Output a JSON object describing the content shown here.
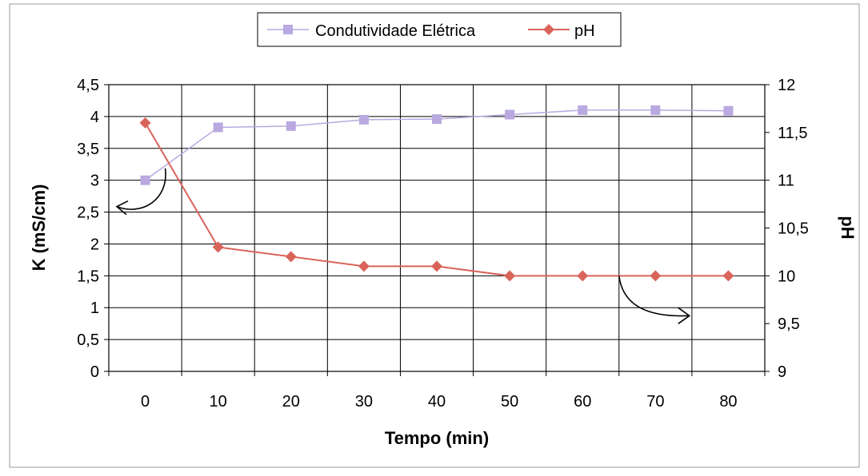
{
  "chart_data": {
    "type": "line",
    "xlabel": "Tempo (min)",
    "ylabel_left": "K (mS/cm)",
    "ylabel_right": "pH",
    "categories": [
      "0",
      "10",
      "20",
      "30",
      "40",
      "50",
      "60",
      "70",
      "80"
    ],
    "ylim_left": [
      0,
      4.5
    ],
    "yticks_left": [
      "0",
      "0,5",
      "1",
      "1,5",
      "2",
      "2,5",
      "3",
      "3,5",
      "4",
      "4,5"
    ],
    "ylim_right": [
      9,
      12
    ],
    "yticks_right": [
      "9",
      "9,5",
      "10",
      "10,5",
      "11",
      "11,5",
      "12"
    ],
    "grid": true,
    "legend_position": "top-center",
    "series": [
      {
        "name": "Condutividade Elétrica",
        "axis": "left",
        "marker": "square",
        "color": "#b9a9e0",
        "values": [
          3.0,
          3.83,
          3.85,
          3.95,
          3.96,
          4.03,
          4.1,
          4.1,
          4.09
        ]
      },
      {
        "name": "pH",
        "axis": "right",
        "marker": "diamond",
        "color": "#d9645a",
        "values": [
          11.6,
          10.3,
          10.2,
          10.1,
          10.1,
          10.0,
          10.0,
          10.0,
          10.0
        ]
      }
    ]
  }
}
